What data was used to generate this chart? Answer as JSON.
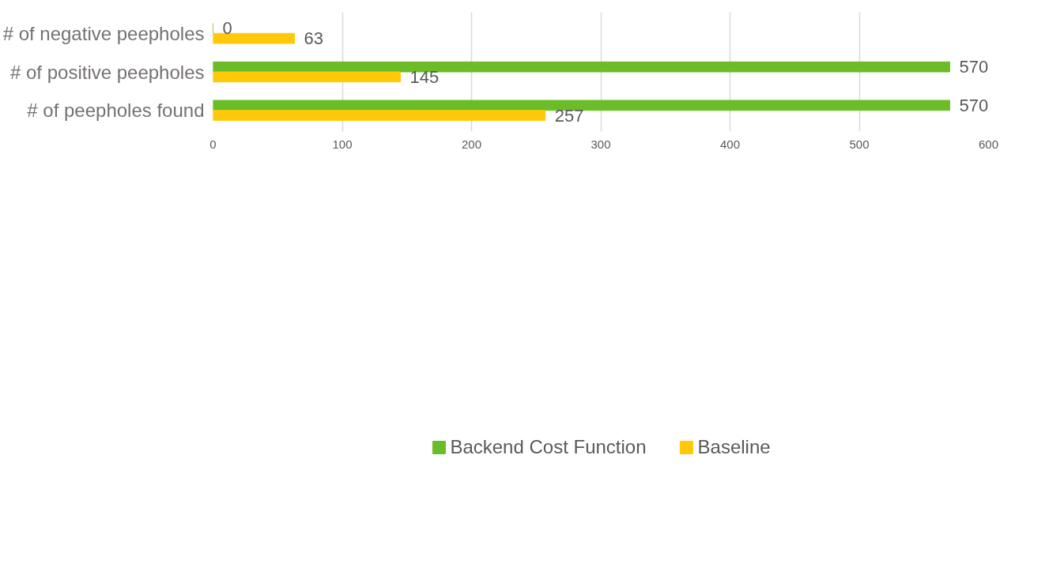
{
  "chart_data": {
    "type": "bar",
    "orientation": "horizontal",
    "categories": [
      "# of negative peepholes",
      "# of positive peepholes",
      "# of peepholes found"
    ],
    "series": [
      {
        "name": "Backend Cost Function",
        "color": "#6bbd28",
        "values": [
          0,
          570,
          570
        ]
      },
      {
        "name": "Baseline",
        "color": "#ffc90a",
        "values": [
          63,
          145,
          257
        ]
      }
    ],
    "xlim": [
      0,
      600
    ],
    "xticks": [
      0,
      100,
      200,
      300,
      400,
      500,
      600
    ],
    "grid": "x",
    "legend": "bottom",
    "data_labels": true
  }
}
